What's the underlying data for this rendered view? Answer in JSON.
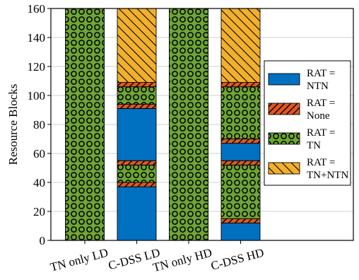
{
  "chart_data": {
    "type": "bar",
    "stacked": true,
    "ylabel": "Resource Blocks",
    "ylim": [
      0,
      160
    ],
    "yticks": [
      0,
      20,
      40,
      60,
      80,
      100,
      120,
      140,
      160
    ],
    "grid": "y",
    "legend_position": "right",
    "categories": [
      "TN only LD",
      "C-DSS LD",
      "TN only HD",
      "C-DSS HD"
    ],
    "segments": [
      [
        {
          "series": "TN",
          "from": 0,
          "to": 160
        }
      ],
      [
        {
          "series": "NTN",
          "from": 0,
          "to": 37
        },
        {
          "series": "None",
          "from": 37,
          "to": 40
        },
        {
          "series": "TN",
          "from": 40,
          "to": 52
        },
        {
          "series": "None",
          "from": 52,
          "to": 55
        },
        {
          "series": "NTN",
          "from": 55,
          "to": 91
        },
        {
          "series": "None",
          "from": 91,
          "to": 94
        },
        {
          "series": "TN",
          "from": 94,
          "to": 106
        },
        {
          "series": "None",
          "from": 106,
          "to": 109
        },
        {
          "series": "TN+NTN",
          "from": 109,
          "to": 160
        }
      ],
      [
        {
          "series": "TN",
          "from": 0,
          "to": 160
        }
      ],
      [
        {
          "series": "NTN",
          "from": 0,
          "to": 12
        },
        {
          "series": "None",
          "from": 12,
          "to": 15
        },
        {
          "series": "TN",
          "from": 15,
          "to": 52
        },
        {
          "series": "None",
          "from": 52,
          "to": 55
        },
        {
          "series": "NTN",
          "from": 55,
          "to": 67
        },
        {
          "series": "None",
          "from": 67,
          "to": 70
        },
        {
          "series": "TN",
          "from": 70,
          "to": 106
        },
        {
          "series": "None",
          "from": 106,
          "to": 109
        },
        {
          "series": "TN+NTN",
          "from": 109,
          "to": 160
        }
      ]
    ],
    "series": [
      {
        "key": "NTN",
        "label_line1": "RAT =",
        "label_line2": "NTN",
        "color": "#0070c0",
        "pattern": "solid"
      },
      {
        "key": "None",
        "label_line1": "RAT =",
        "label_line2": "None",
        "color": "#e2571e",
        "pattern": "hatch"
      },
      {
        "key": "TN",
        "label_line1": "RAT =",
        "label_line2": "TN",
        "color": "#6ea534",
        "pattern": "circles"
      },
      {
        "key": "TN+NTN",
        "label_line1": "RAT =",
        "label_line2": "TN+NTN",
        "color": "#f2b02a",
        "pattern": "hatch"
      }
    ]
  }
}
